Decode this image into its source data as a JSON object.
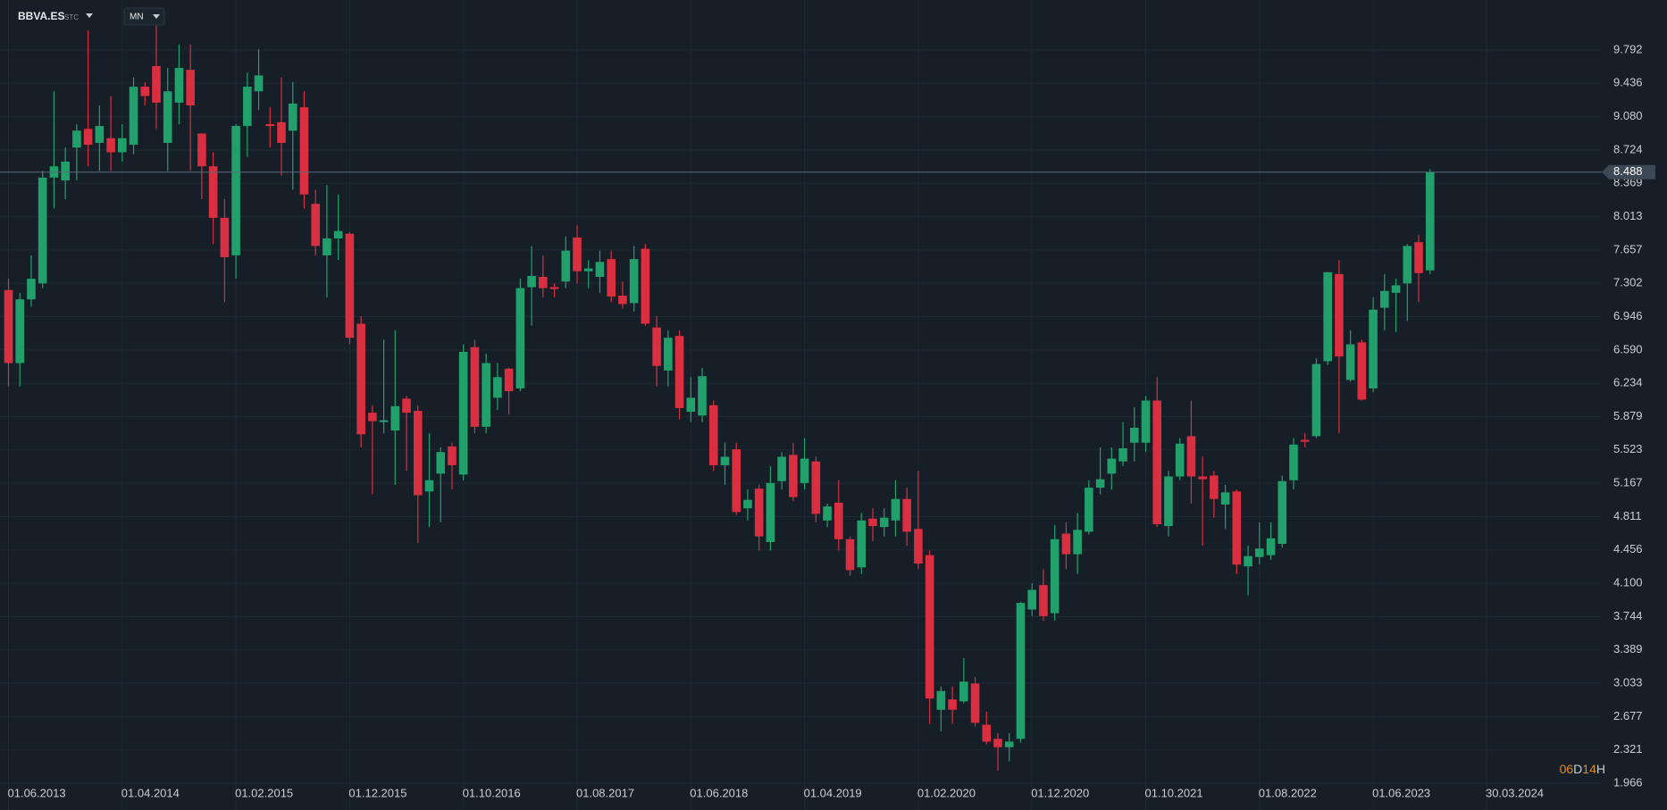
{
  "header": {
    "symbol": "BBVA.ES",
    "source": "STC",
    "interval": "MN"
  },
  "countdown": [
    "06",
    "D",
    "14",
    "H"
  ],
  "chart_data": {
    "type": "candlestick",
    "up_color": "#22a06b",
    "down_color": "#d92f40",
    "grid": true,
    "x": [
      "2013-06-01",
      "2013-07-01",
      "2013-08-01",
      "2013-09-01",
      "2013-10-01",
      "2013-11-01",
      "2013-12-01",
      "2014-01-01",
      "2014-02-01",
      "2014-03-01",
      "2014-04-01",
      "2014-05-01",
      "2014-06-01",
      "2014-07-01",
      "2014-08-01",
      "2014-09-01",
      "2014-10-01",
      "2014-11-01",
      "2014-12-01",
      "2015-01-01",
      "2015-02-01",
      "2015-03-01",
      "2015-04-01",
      "2015-05-01",
      "2015-06-01",
      "2015-07-01",
      "2015-08-01",
      "2015-09-01",
      "2015-10-01",
      "2015-11-01",
      "2015-12-01",
      "2016-01-01",
      "2016-02-01",
      "2016-03-01",
      "2016-04-01",
      "2016-05-01",
      "2016-06-01",
      "2016-07-01",
      "2016-08-01",
      "2016-09-01",
      "2016-10-01",
      "2016-11-01",
      "2016-12-01",
      "2017-01-01",
      "2017-02-01",
      "2017-03-01",
      "2017-04-01",
      "2017-05-01",
      "2017-06-01",
      "2017-07-01",
      "2017-08-01",
      "2017-09-01",
      "2017-10-01",
      "2017-11-01",
      "2017-12-01",
      "2018-01-01",
      "2018-02-01",
      "2018-03-01",
      "2018-04-01",
      "2018-05-01",
      "2018-06-01",
      "2018-07-01",
      "2018-08-01",
      "2018-09-01",
      "2018-10-01",
      "2018-11-01",
      "2018-12-01",
      "2019-01-01",
      "2019-02-01",
      "2019-03-01",
      "2019-04-01",
      "2019-05-01",
      "2019-06-01",
      "2019-07-01",
      "2019-08-01",
      "2019-09-01",
      "2019-10-01",
      "2019-11-01",
      "2019-12-01",
      "2020-01-01",
      "2020-02-01",
      "2020-03-01",
      "2020-04-01",
      "2020-05-01",
      "2020-06-01",
      "2020-07-01",
      "2020-08-01",
      "2020-09-01",
      "2020-10-01",
      "2020-11-01",
      "2020-12-01",
      "2021-01-01",
      "2021-02-01",
      "2021-03-01",
      "2021-04-01",
      "2021-05-01",
      "2021-06-01",
      "2021-07-01",
      "2021-08-01",
      "2021-09-01",
      "2021-10-01",
      "2021-11-01",
      "2021-12-01",
      "2022-01-01",
      "2022-02-01",
      "2022-03-01",
      "2022-04-01",
      "2022-05-01",
      "2022-06-01",
      "2022-07-01",
      "2022-08-01",
      "2022-09-01",
      "2022-10-01",
      "2022-11-01",
      "2022-12-01",
      "2023-01-01",
      "2023-02-01",
      "2023-03-01",
      "2023-04-01",
      "2023-05-01",
      "2023-06-01",
      "2023-07-01",
      "2023-08-01",
      "2023-09-01",
      "2023-10-01",
      "2023-11-01"
    ],
    "open": [
      7.23,
      6.45,
      7.13,
      7.3,
      8.43,
      8.4,
      8.75,
      8.95,
      8.8,
      8.85,
      8.7,
      8.78,
      9.4,
      9.62,
      8.8,
      9.23,
      9.58,
      8.9,
      8.55,
      8.0,
      7.6,
      8.98,
      9.35,
      9.0,
      9.02,
      8.93,
      9.18,
      8.15,
      7.6,
      7.78,
      7.83,
      6.87,
      5.92,
      5.82,
      5.73,
      6.07,
      5.94,
      5.08,
      5.27,
      5.56,
      5.26,
      6.62,
      5.77,
      6.08,
      6.39,
      6.18,
      7.26,
      7.37,
      7.26,
      7.32,
      7.79,
      7.43,
      7.37,
      7.56,
      7.17,
      7.09,
      7.67,
      6.83,
      6.37,
      6.74,
      5.93,
      5.89,
      6.0,
      5.36,
      5.53,
      4.9,
      5.11,
      4.54,
      5.19,
      5.47,
      5.17,
      5.4,
      4.77,
      4.96,
      4.57,
      4.27,
      4.79,
      4.7,
      4.77,
      5.0,
      4.68,
      4.4,
      2.75,
      2.86,
      2.84,
      3.03,
      2.59,
      2.44,
      2.35,
      2.44,
      3.82,
      4.08,
      3.78,
      4.63,
      4.41,
      4.65,
      5.12,
      5.27,
      5.4,
      5.6,
      5.6,
      6.05,
      4.71,
      5.24,
      5.67,
      5.24,
      5.25,
      4.94,
      5.08,
      4.28,
      4.38,
      4.4,
      4.52,
      5.2,
      5.63,
      5.67,
      6.47,
      7.4,
      6.27,
      6.67,
      6.18,
      7.04,
      7.2,
      7.3,
      7.74,
      7.44
    ],
    "high": [
      7.35,
      7.2,
      7.6,
      8.5,
      9.35,
      8.75,
      9.0,
      10.0,
      9.2,
      9.3,
      9.0,
      9.5,
      9.45,
      10.05,
      9.6,
      9.85,
      9.85,
      8.9,
      8.7,
      8.2,
      9.0,
      9.55,
      9.8,
      9.18,
      9.5,
      9.45,
      9.35,
      8.3,
      8.35,
      8.25,
      7.85,
      6.95,
      6.0,
      6.7,
      6.8,
      6.1,
      6.0,
      5.7,
      5.55,
      5.6,
      6.65,
      6.7,
      6.55,
      6.45,
      6.4,
      7.35,
      7.7,
      7.6,
      7.3,
      7.8,
      7.92,
      7.55,
      7.65,
      7.65,
      7.32,
      7.7,
      7.72,
      6.95,
      6.8,
      6.8,
      6.3,
      6.4,
      6.05,
      5.6,
      5.6,
      5.1,
      5.15,
      5.35,
      5.5,
      5.6,
      5.65,
      5.45,
      4.95,
      5.2,
      4.6,
      4.85,
      4.9,
      4.9,
      5.2,
      5.12,
      5.3,
      4.45,
      3.0,
      3.0,
      3.3,
      3.1,
      2.73,
      2.5,
      2.5,
      3.9,
      4.1,
      4.25,
      4.72,
      4.75,
      4.85,
      5.2,
      5.55,
      5.55,
      5.82,
      5.98,
      6.1,
      6.3,
      5.3,
      5.65,
      6.05,
      5.45,
      5.3,
      5.15,
      5.1,
      4.5,
      4.75,
      4.75,
      5.25,
      5.65,
      5.7,
      6.5,
      7.42,
      7.55,
      6.8,
      6.7,
      7.15,
      7.4,
      7.35,
      7.72,
      7.82,
      8.52
    ],
    "low": [
      6.2,
      6.2,
      7.05,
      7.25,
      8.1,
      8.2,
      8.4,
      8.55,
      8.5,
      8.5,
      8.6,
      8.68,
      9.2,
      8.95,
      8.5,
      9.0,
      8.5,
      8.2,
      7.72,
      7.1,
      7.35,
      8.65,
      9.15,
      8.75,
      8.45,
      8.3,
      8.1,
      7.6,
      7.15,
      7.55,
      6.65,
      5.55,
      5.05,
      5.7,
      5.15,
      5.3,
      4.53,
      4.7,
      4.75,
      5.1,
      5.2,
      5.7,
      5.7,
      5.95,
      5.9,
      6.15,
      6.85,
      7.15,
      7.15,
      7.25,
      7.3,
      7.25,
      7.2,
      7.1,
      7.03,
      7.0,
      6.85,
      6.2,
      6.2,
      5.85,
      5.82,
      5.82,
      5.3,
      5.15,
      4.83,
      4.77,
      4.45,
      4.45,
      5.1,
      4.98,
      5.1,
      4.75,
      4.7,
      4.45,
      4.18,
      4.2,
      4.55,
      4.6,
      4.6,
      4.5,
      4.25,
      2.6,
      2.52,
      2.6,
      2.82,
      2.57,
      2.38,
      2.1,
      2.2,
      2.4,
      3.75,
      3.7,
      3.7,
      4.25,
      4.2,
      4.62,
      5.05,
      5.1,
      5.35,
      5.4,
      5.5,
      4.7,
      4.6,
      5.2,
      4.95,
      4.5,
      4.8,
      4.68,
      4.2,
      3.97,
      4.3,
      4.35,
      4.48,
      5.1,
      5.55,
      5.65,
      6.43,
      5.7,
      6.25,
      6.05,
      6.14,
      6.8,
      6.78,
      6.9,
      7.1,
      7.4
    ],
    "close": [
      6.45,
      7.13,
      7.35,
      8.43,
      8.55,
      8.6,
      8.93,
      8.78,
      8.98,
      8.7,
      8.85,
      9.4,
      9.3,
      9.23,
      9.35,
      9.6,
      9.2,
      8.55,
      8.0,
      7.58,
      8.98,
      9.4,
      9.52,
      8.98,
      8.8,
      9.22,
      8.25,
      7.7,
      7.78,
      7.86,
      6.72,
      5.69,
      5.83,
      5.84,
      5.99,
      5.92,
      5.04,
      5.2,
      5.5,
      5.36,
      6.57,
      5.77,
      6.45,
      6.3,
      6.15,
      7.25,
      7.38,
      7.25,
      7.24,
      7.65,
      7.43,
      7.46,
      7.53,
      7.16,
      7.08,
      7.56,
      6.87,
      6.42,
      6.72,
      5.97,
      6.08,
      6.31,
      5.36,
      5.45,
      4.86,
      4.99,
      4.6,
      5.17,
      5.45,
      5.02,
      5.43,
      4.84,
      4.92,
      4.57,
      4.24,
      4.77,
      4.71,
      4.8,
      5.0,
      4.65,
      4.31,
      2.87,
      2.95,
      2.75,
      3.05,
      2.61,
      2.41,
      2.35,
      2.41,
      3.89,
      4.03,
      3.75,
      4.57,
      4.41,
      4.67,
      5.12,
      5.21,
      5.43,
      5.54,
      5.76,
      6.05,
      4.73,
      5.24,
      5.59,
      5.24,
      5.21,
      5.0,
      5.07,
      4.3,
      4.39,
      4.47,
      4.58,
      5.19,
      5.58,
      5.61,
      6.44,
      7.42,
      6.52,
      6.65,
      6.06,
      7.02,
      7.22,
      7.28,
      7.7,
      7.41,
      8.488
    ],
    "last_price": 8.488,
    "ylim": [
      1.68,
      10.325
    ],
    "yticks": [
      9.792,
      9.436,
      {
        "value": 9.08,
        "label": "9.080"
      },
      8.724,
      8.369,
      8.013,
      7.657,
      7.302,
      6.946,
      {
        "value": 6.59,
        "label": "6.590"
      },
      6.234,
      5.879,
      5.523,
      5.167,
      4.811,
      4.456,
      {
        "value": 4.1,
        "label": "4.100"
      },
      3.744,
      3.389,
      3.033,
      2.677,
      2.321,
      1.966
    ],
    "xticks": [
      {
        "value": "2013-06-01",
        "label": "01.06.2013"
      },
      {
        "value": "2014-04-01",
        "label": "01.04.2014"
      },
      {
        "value": "2015-02-01",
        "label": "01.02.2015"
      },
      {
        "value": "2015-12-01",
        "label": "01.12.2015"
      },
      {
        "value": "2016-10-01",
        "label": "01.10.2016"
      },
      {
        "value": "2017-08-01",
        "label": "01.08.2017"
      },
      {
        "value": "2018-06-01",
        "label": "01.06.2018"
      },
      {
        "value": "2019-04-01",
        "label": "01.04.2019"
      },
      {
        "value": "2020-02-01",
        "label": "01.02.2020"
      },
      {
        "value": "2020-12-01",
        "label": "01.12.2020"
      },
      {
        "value": "2021-10-01",
        "label": "01.10.2021"
      },
      {
        "value": "2022-08-01",
        "label": "01.08.2022"
      },
      {
        "value": "2023-06-01",
        "label": "01.06.2023"
      },
      {
        "value": "2024-03-30",
        "label": "30.03.2024"
      }
    ]
  }
}
